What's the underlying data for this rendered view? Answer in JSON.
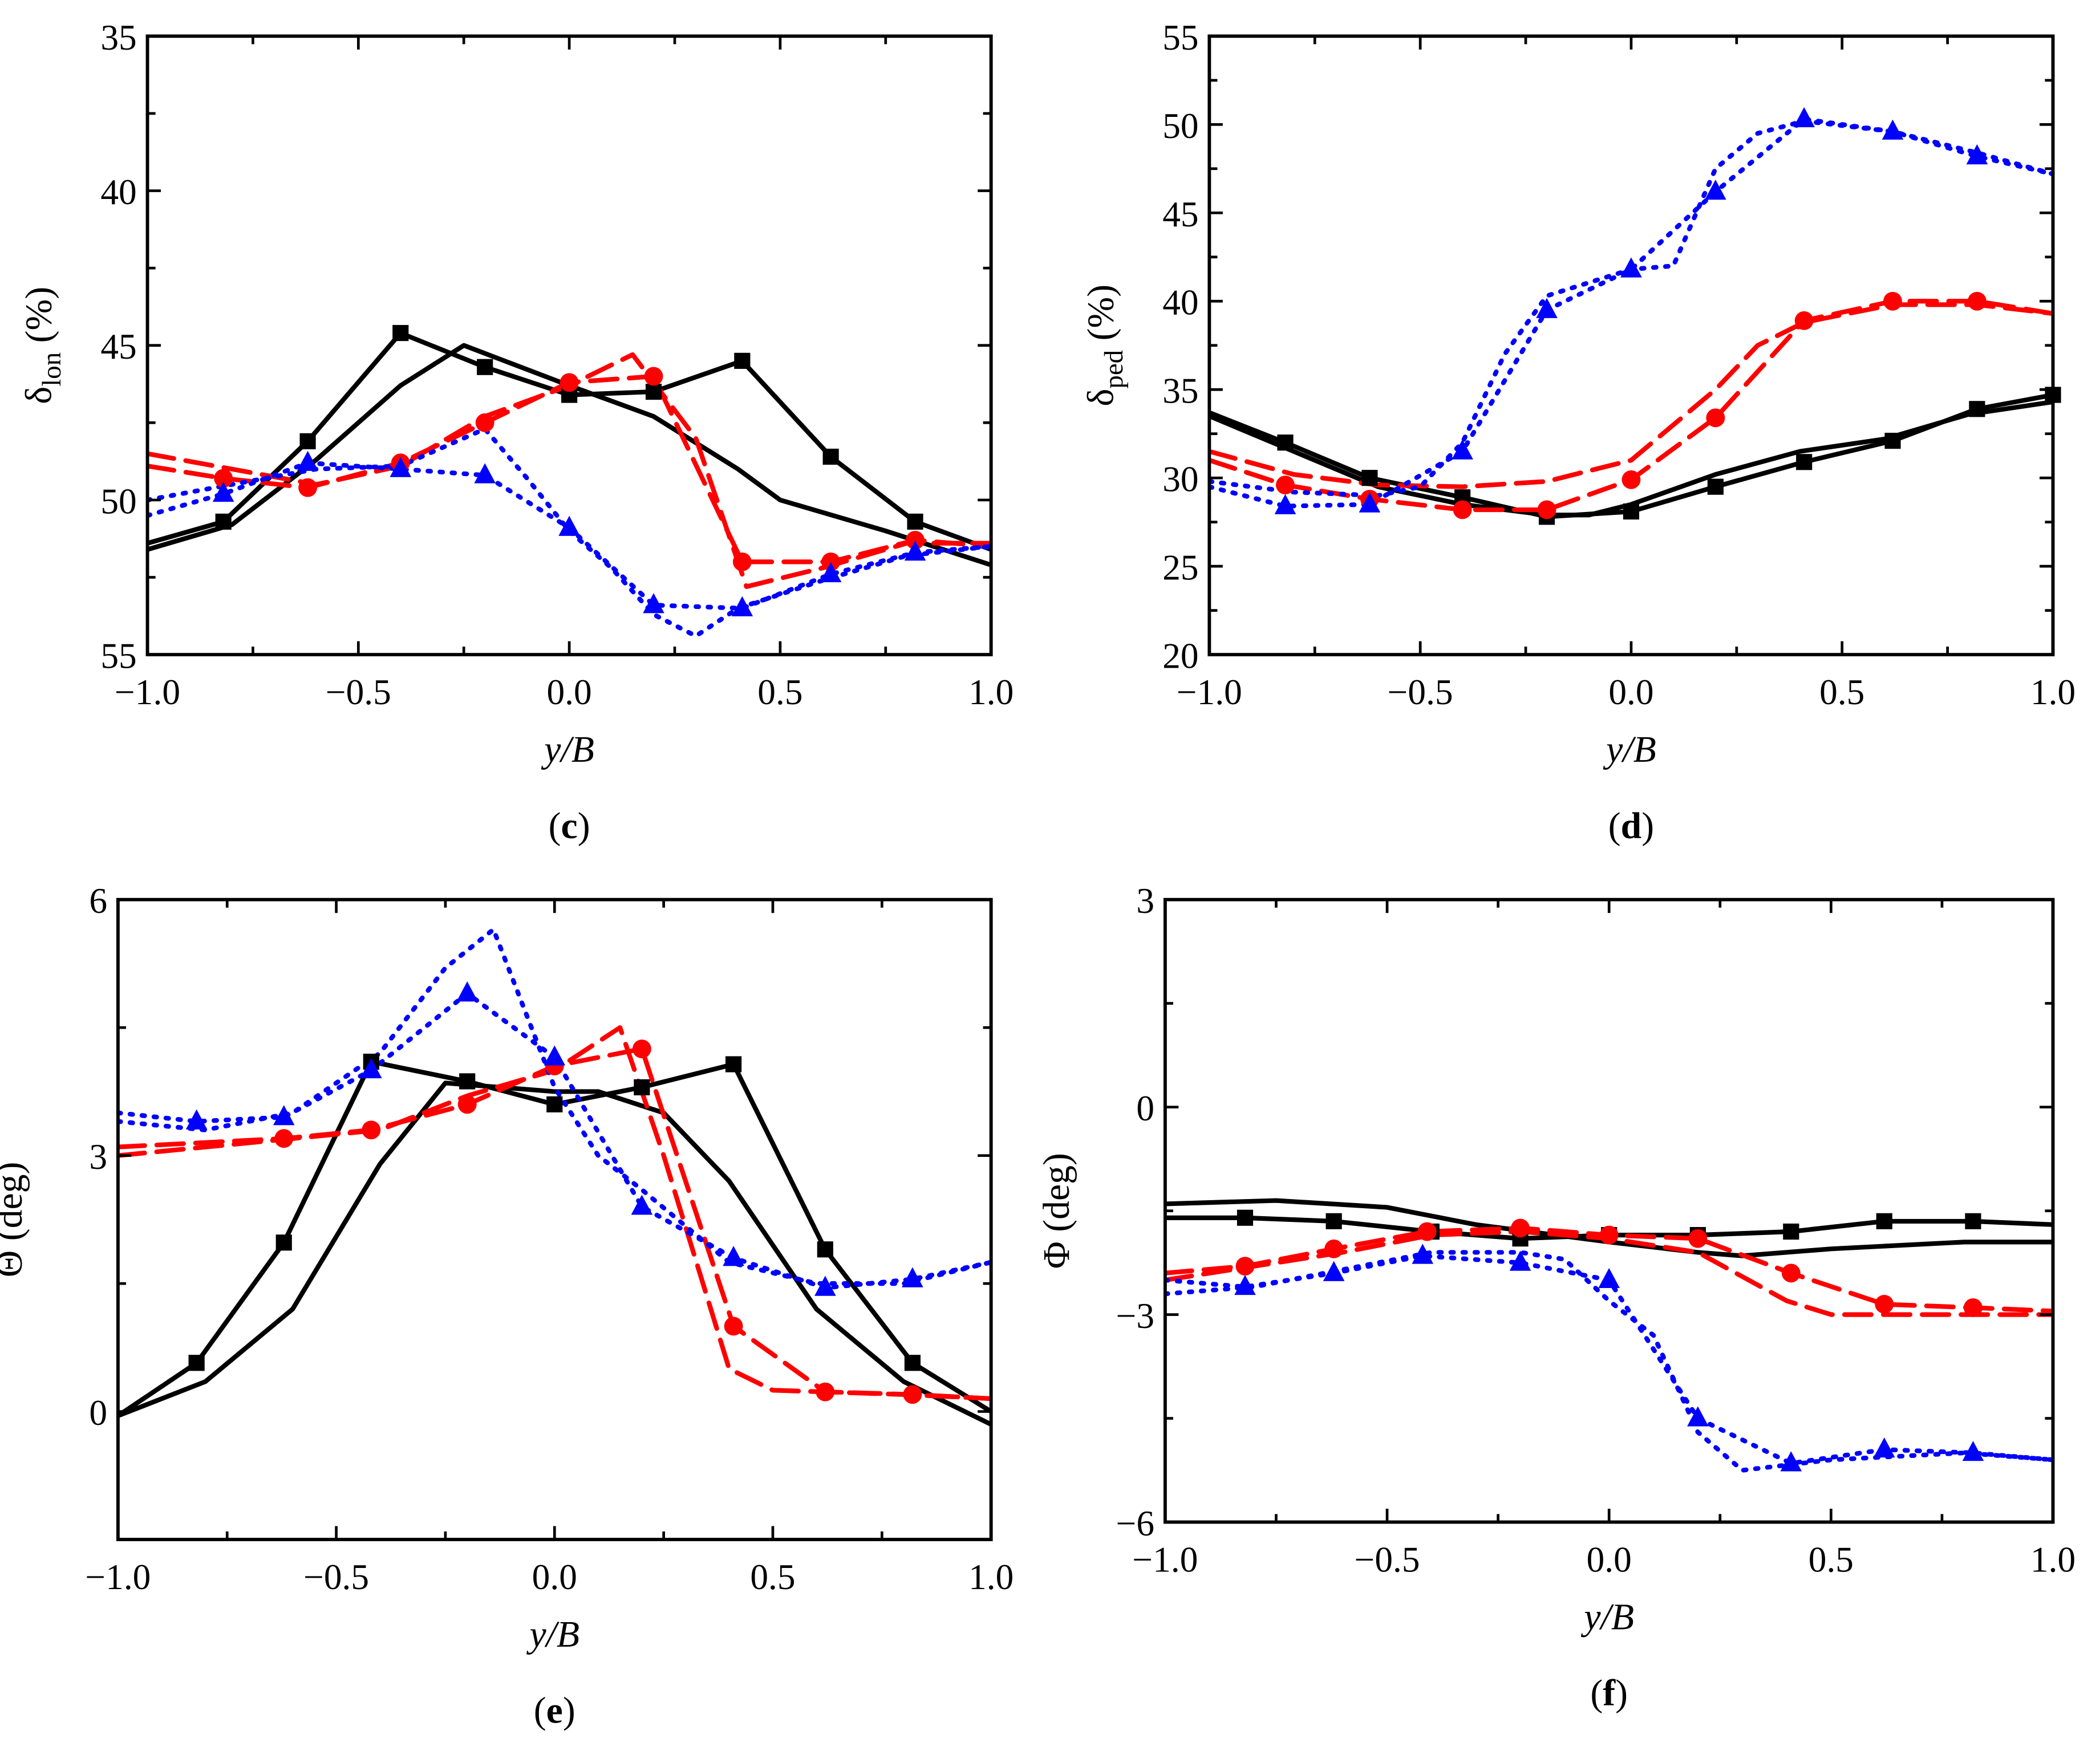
{
  "chart_data": [
    {
      "type": "line",
      "panel_label": {
        "open": "(",
        "letter": "c",
        "close": ")"
      },
      "xlabel": "y/B",
      "ylabel": {
        "main": "δ",
        "sub": "lon",
        "unit": " (%)"
      },
      "xlim": [
        -1,
        1
      ],
      "ylim": [
        35,
        55
      ],
      "y_reversed": true,
      "xticks": [
        -1,
        -0.5,
        0,
        0.5,
        1
      ],
      "xtick_labels": [
        "−1.0",
        "−0.5",
        "0.0",
        "0.5",
        "1.0"
      ],
      "yticks": [
        35,
        40,
        45,
        50,
        55
      ],
      "ytick_labels": [
        "35",
        "40",
        "45",
        "50",
        "55"
      ],
      "series": [
        {
          "color": "#000000",
          "dash": "solid",
          "marker": "square",
          "x": [
            -1,
            -0.82,
            -0.62,
            -0.4,
            -0.2,
            0,
            0.2,
            0.41,
            0.62,
            0.82,
            1
          ],
          "y": [
            51.4,
            50.7,
            48.1,
            44.6,
            45.7,
            46.6,
            46.5,
            45.5,
            48.6,
            50.7,
            51.6
          ],
          "marker_x": [
            -0.82,
            -0.62,
            -0.4,
            -0.2,
            0,
            0.2,
            0.41,
            0.62,
            0.82
          ]
        },
        {
          "color": "#000000",
          "dash": "solid",
          "marker": "none",
          "x": [
            -1,
            -0.8,
            -0.6,
            -0.4,
            -0.25,
            0,
            0.2,
            0.4,
            0.5,
            0.75,
            1
          ],
          "y": [
            51.6,
            50.8,
            48.7,
            46.3,
            45.0,
            46.3,
            47.3,
            49.0,
            50.0,
            51.0,
            52.1
          ]
        },
        {
          "color": "#ff0000",
          "dash": "dashed",
          "marker": "circle",
          "x": [
            -1,
            -0.82,
            -0.62,
            -0.4,
            -0.2,
            0,
            0.2,
            0.41,
            0.62,
            0.82,
            1
          ],
          "y": [
            48.9,
            49.3,
            49.6,
            48.8,
            47.5,
            46.2,
            46.0,
            52.0,
            52.0,
            51.3,
            51.5
          ],
          "marker_x": [
            -0.82,
            -0.62,
            -0.4,
            -0.2,
            0,
            0.2,
            0.41,
            0.62,
            0.82
          ]
        },
        {
          "color": "#ff0000",
          "dash": "dashed",
          "marker": "none",
          "x": [
            -1,
            -0.6,
            -0.4,
            -0.2,
            0,
            0.15,
            0.3,
            0.42,
            0.6,
            0.8,
            1
          ],
          "y": [
            48.5,
            49.5,
            48.9,
            47.3,
            46.3,
            45.3,
            48.0,
            52.8,
            52.2,
            51.4,
            51.4
          ]
        },
        {
          "color": "#0000ff",
          "dash": "dotted",
          "marker": "triangle",
          "x": [
            -1,
            -0.82,
            -0.62,
            -0.4,
            -0.2,
            0,
            0.2,
            0.41,
            0.62,
            0.82,
            1
          ],
          "y": [
            50.5,
            49.8,
            48.8,
            49.0,
            49.2,
            50.9,
            53.4,
            53.5,
            52.4,
            51.7,
            51.5
          ],
          "marker_x": [
            -0.82,
            -0.62,
            -0.4,
            -0.2,
            0,
            0.2,
            0.41,
            0.62,
            0.82
          ]
        },
        {
          "color": "#0000ff",
          "dash": "dotted",
          "marker": "none",
          "x": [
            -1,
            -0.8,
            -0.6,
            -0.4,
            -0.2,
            -0.1,
            0,
            0.1,
            0.2,
            0.3,
            0.4,
            0.6,
            0.8,
            1
          ],
          "y": [
            50.0,
            49.5,
            49.0,
            48.9,
            47.7,
            49.3,
            51.0,
            52.2,
            53.7,
            54.4,
            53.5,
            52.6,
            51.8,
            51.5
          ]
        }
      ]
    },
    {
      "type": "line",
      "panel_label": {
        "open": "(",
        "letter": "d",
        "close": ")"
      },
      "xlabel": "y/B",
      "ylabel": {
        "main": "δ",
        "sub": "ped",
        "unit": " (%)"
      },
      "xlim": [
        -1,
        1
      ],
      "ylim": [
        20,
        55
      ],
      "y_reversed": false,
      "xticks": [
        -1,
        -0.5,
        0,
        0.5,
        1
      ],
      "xtick_labels": [
        "−1.0",
        "−0.5",
        "0.0",
        "0.5",
        "1.0"
      ],
      "yticks": [
        20,
        25,
        30,
        35,
        40,
        45,
        50,
        55
      ],
      "ytick_labels": [
        "20",
        "25",
        "30",
        "35",
        "40",
        "45",
        "50",
        "55"
      ],
      "series": [
        {
          "color": "#000000",
          "dash": "solid",
          "marker": "square",
          "x": [
            -1,
            -0.82,
            -0.62,
            -0.4,
            -0.2,
            0,
            0.2,
            0.41,
            0.62,
            0.82,
            1
          ],
          "y": [
            33.7,
            32.0,
            30.0,
            28.9,
            27.8,
            28.1,
            29.5,
            30.9,
            32.1,
            33.9,
            34.7
          ],
          "marker_x": [
            -0.82,
            -0.62,
            -0.4,
            -0.2,
            0,
            0.2,
            0.41,
            0.62,
            0.82,
            1
          ]
        },
        {
          "color": "#000000",
          "dash": "solid",
          "marker": "none",
          "x": [
            -1,
            -0.8,
            -0.6,
            -0.4,
            -0.2,
            -0.1,
            0,
            0.2,
            0.4,
            0.6,
            0.8,
            1
          ],
          "y": [
            33.5,
            31.5,
            29.5,
            28.5,
            27.9,
            27.9,
            28.5,
            30.2,
            31.5,
            32.2,
            33.6,
            34.3
          ]
        },
        {
          "color": "#ff0000",
          "dash": "dashed",
          "marker": "circle",
          "x": [
            -1,
            -0.82,
            -0.62,
            -0.4,
            -0.2,
            0,
            0.2,
            0.41,
            0.62,
            0.82,
            1
          ],
          "y": [
            31.0,
            29.6,
            28.8,
            28.2,
            28.2,
            29.9,
            33.4,
            38.9,
            40.0,
            40.0,
            39.3
          ],
          "marker_x": [
            -0.82,
            -0.62,
            -0.4,
            -0.2,
            0,
            0.2,
            0.41,
            0.62,
            0.82
          ]
        },
        {
          "color": "#ff0000",
          "dash": "dashed",
          "marker": "none",
          "x": [
            -1,
            -0.8,
            -0.6,
            -0.4,
            -0.2,
            0,
            0.2,
            0.3,
            0.41,
            0.62,
            0.82,
            1
          ],
          "y": [
            31.5,
            30.2,
            29.6,
            29.5,
            29.8,
            31.0,
            35.0,
            37.5,
            38.8,
            39.8,
            39.8,
            39.3
          ]
        },
        {
          "color": "#0000ff",
          "dash": "dotted",
          "marker": "triangle",
          "x": [
            -1,
            -0.82,
            -0.62,
            -0.4,
            -0.2,
            0,
            0.2,
            0.41,
            0.62,
            0.82,
            1
          ],
          "y": [
            29.5,
            28.4,
            28.5,
            31.5,
            39.5,
            41.8,
            46.2,
            50.3,
            49.6,
            48.2,
            47.2
          ],
          "marker_x": [
            -0.82,
            -0.62,
            -0.4,
            -0.2,
            0,
            0.2,
            0.41,
            0.62,
            0.82
          ]
        },
        {
          "color": "#0000ff",
          "dash": "dotted",
          "marker": "none",
          "x": [
            -1,
            -0.8,
            -0.6,
            -0.5,
            -0.4,
            -0.3,
            -0.2,
            0,
            0.1,
            0.2,
            0.3,
            0.41,
            0.62,
            0.82,
            1
          ],
          "y": [
            29.8,
            29.2,
            29.0,
            29.5,
            32.0,
            37.0,
            40.3,
            41.8,
            42.0,
            47.5,
            49.5,
            50.2,
            49.6,
            48.4,
            47.2
          ]
        }
      ]
    },
    {
      "type": "line",
      "panel_label": {
        "open": "(",
        "letter": "e",
        "close": ")"
      },
      "xlabel": "y/B",
      "ylabel": {
        "main": "Θ",
        "sub": "",
        "unit": " (deg)"
      },
      "xlim": [
        -1,
        1
      ],
      "ylim": [
        -1.5,
        6
      ],
      "y_reversed": false,
      "xticks": [
        -1,
        -0.5,
        0,
        0.5,
        1
      ],
      "xtick_labels": [
        "−1.0",
        "−0.5",
        "0.0",
        "0.5",
        "1.0"
      ],
      "yticks": [
        0,
        3,
        6
      ],
      "ytick_labels": [
        "0",
        "3",
        "6"
      ],
      "series": [
        {
          "color": "#000000",
          "dash": "solid",
          "marker": "square",
          "x": [
            -1,
            -0.82,
            -0.62,
            -0.42,
            -0.2,
            0,
            0.2,
            0.41,
            0.62,
            0.82,
            1
          ],
          "y": [
            -0.05,
            0.57,
            1.98,
            4.1,
            3.87,
            3.6,
            3.8,
            4.07,
            1.9,
            0.57,
            0.0
          ],
          "marker_x": [
            -0.82,
            -0.62,
            -0.42,
            -0.2,
            0,
            0.2,
            0.41,
            0.62,
            0.82
          ]
        },
        {
          "color": "#000000",
          "dash": "solid",
          "marker": "none",
          "x": [
            -1,
            -0.8,
            -0.6,
            -0.4,
            -0.25,
            0,
            0.1,
            0.25,
            0.4,
            0.6,
            0.8,
            1
          ],
          "y": [
            -0.05,
            0.35,
            1.2,
            2.9,
            3.85,
            3.75,
            3.75,
            3.5,
            2.7,
            1.2,
            0.35,
            -0.15
          ]
        },
        {
          "color": "#ff0000",
          "dash": "dashed",
          "marker": "circle",
          "x": [
            -1,
            -0.62,
            -0.42,
            -0.2,
            0,
            0.2,
            0.41,
            0.62,
            0.82,
            1
          ],
          "y": [
            3.1,
            3.2,
            3.3,
            3.6,
            4.05,
            4.25,
            1.0,
            0.23,
            0.2,
            0.15
          ],
          "marker_x": [
            -0.62,
            -0.42,
            -0.2,
            0,
            0.2,
            0.41,
            0.62,
            0.82
          ]
        },
        {
          "color": "#ff0000",
          "dash": "dashed",
          "marker": "none",
          "x": [
            -1,
            -0.6,
            -0.4,
            -0.2,
            0,
            0.15,
            0.25,
            0.4,
            0.5,
            0.8,
            1
          ],
          "y": [
            3.0,
            3.2,
            3.3,
            3.7,
            4.0,
            4.5,
            3.0,
            0.5,
            0.25,
            0.2,
            0.15
          ]
        },
        {
          "color": "#0000ff",
          "dash": "dotted",
          "marker": "triangle",
          "x": [
            -1,
            -0.82,
            -0.62,
            -0.42,
            -0.2,
            0,
            0.2,
            0.41,
            0.62,
            0.82,
            1
          ],
          "y": [
            3.5,
            3.4,
            3.45,
            4.0,
            4.9,
            4.15,
            2.4,
            1.8,
            1.45,
            1.55,
            1.75
          ],
          "marker_x": [
            -0.82,
            -0.62,
            -0.42,
            -0.2,
            0,
            0.2,
            0.41,
            0.62,
            0.82
          ]
        },
        {
          "color": "#0000ff",
          "dash": "dotted",
          "marker": "none",
          "x": [
            -1,
            -0.8,
            -0.6,
            -0.4,
            -0.25,
            -0.14,
            0,
            0.1,
            0.2,
            0.4,
            0.6,
            0.8,
            1
          ],
          "y": [
            3.4,
            3.3,
            3.5,
            4.2,
            5.2,
            5.65,
            3.8,
            3.0,
            2.6,
            1.75,
            1.5,
            1.5,
            1.75
          ]
        }
      ]
    },
    {
      "type": "line",
      "panel_label": {
        "open": "(",
        "letter": "f",
        "close": ")"
      },
      "xlabel": "y/B",
      "ylabel": {
        "main": "Φ",
        "sub": "",
        "unit": " (deg)"
      },
      "xlim": [
        -1,
        1
      ],
      "ylim": [
        -6,
        3
      ],
      "y_reversed": false,
      "xticks": [
        -1,
        -0.5,
        0,
        0.5,
        1
      ],
      "xtick_labels": [
        "−1.0",
        "−0.5",
        "0.0",
        "0.5",
        "1.0"
      ],
      "yticks": [
        -6,
        -3,
        0,
        3
      ],
      "ytick_labels": [
        "−6",
        "−3",
        "0",
        "3"
      ],
      "series": [
        {
          "color": "#000000",
          "dash": "solid",
          "marker": "square",
          "x": [
            -1,
            -0.82,
            -0.62,
            -0.4,
            -0.2,
            0,
            0.2,
            0.41,
            0.62,
            0.82,
            1
          ],
          "y": [
            -1.6,
            -1.6,
            -1.65,
            -1.8,
            -1.9,
            -1.85,
            -1.85,
            -1.8,
            -1.65,
            -1.65,
            -1.7
          ],
          "marker_x": [
            -0.82,
            -0.62,
            -0.4,
            -0.2,
            0,
            0.2,
            0.41,
            0.62,
            0.82
          ]
        },
        {
          "color": "#000000",
          "dash": "solid",
          "marker": "none",
          "x": [
            -1,
            -0.75,
            -0.5,
            -0.3,
            0,
            0.2,
            0.3,
            0.5,
            0.8,
            1
          ],
          "y": [
            -1.4,
            -1.35,
            -1.45,
            -1.7,
            -1.95,
            -2.1,
            -2.15,
            -2.05,
            -1.95,
            -1.95
          ]
        },
        {
          "color": "#ff0000",
          "dash": "dashed",
          "marker": "circle",
          "x": [
            -1,
            -0.82,
            -0.62,
            -0.41,
            -0.2,
            0,
            0.2,
            0.41,
            0.62,
            0.82,
            1
          ],
          "y": [
            -2.4,
            -2.3,
            -2.05,
            -1.8,
            -1.75,
            -1.85,
            -1.9,
            -2.4,
            -2.85,
            -2.9,
            -2.95
          ],
          "marker_x": [
            -0.82,
            -0.62,
            -0.41,
            -0.2,
            0,
            0.2,
            0.41,
            0.62,
            0.82
          ]
        },
        {
          "color": "#ff0000",
          "dash": "dashed",
          "marker": "none",
          "x": [
            -1,
            -0.6,
            -0.4,
            -0.2,
            0,
            0.2,
            0.4,
            0.5,
            0.8,
            1
          ],
          "y": [
            -2.5,
            -2.1,
            -1.85,
            -1.8,
            -1.9,
            -2.1,
            -2.8,
            -3.0,
            -3.0,
            -3.0
          ]
        },
        {
          "color": "#0000ff",
          "dash": "dotted",
          "marker": "triangle",
          "x": [
            -1,
            -0.82,
            -0.62,
            -0.42,
            -0.2,
            0,
            0.2,
            0.41,
            0.62,
            0.82,
            1
          ],
          "y": [
            -2.5,
            -2.6,
            -2.4,
            -2.15,
            -2.25,
            -2.5,
            -4.5,
            -5.15,
            -4.95,
            -5.0,
            -5.1
          ],
          "marker_x": [
            -0.82,
            -0.62,
            -0.42,
            -0.2,
            0,
            0.2,
            0.41,
            0.62,
            0.82
          ]
        },
        {
          "color": "#0000ff",
          "dash": "dotted",
          "marker": "none",
          "x": [
            -1,
            -0.8,
            -0.6,
            -0.4,
            -0.2,
            -0.1,
            0,
            0.1,
            0.2,
            0.3,
            0.5,
            0.8,
            1
          ],
          "y": [
            -2.7,
            -2.6,
            -2.35,
            -2.1,
            -2.1,
            -2.2,
            -2.8,
            -3.3,
            -4.7,
            -5.25,
            -5.1,
            -5.0,
            -5.1
          ]
        }
      ]
    }
  ]
}
